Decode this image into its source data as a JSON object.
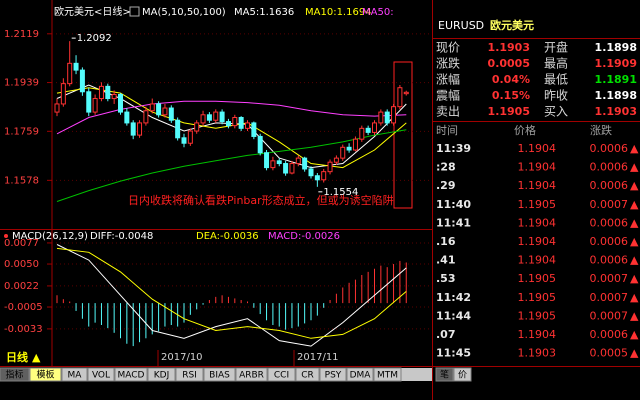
{
  "header": {
    "symbol": "EURUSD",
    "name": "欧元美元"
  },
  "quote": [
    {
      "label": "现价",
      "value": "1.1903",
      "color": "#ff3232"
    },
    {
      "label": "开盘",
      "value": "1.1898",
      "color": "#ffffff"
    },
    {
      "label": "涨跌",
      "value": "0.0005",
      "color": "#ff3232"
    },
    {
      "label": "最高",
      "value": "1.1909",
      "color": "#ff3232"
    },
    {
      "label": "涨幅",
      "value": "0.04%",
      "color": "#ff3232"
    },
    {
      "label": "最低",
      "value": "1.1891",
      "color": "#00e000"
    },
    {
      "label": "震幅",
      "value": "0.15%",
      "color": "#ff3232"
    },
    {
      "label": "昨收",
      "value": "1.1898",
      "color": "#ffffff"
    },
    {
      "label": "卖出",
      "value": "1.1905",
      "color": "#ff3232"
    },
    {
      "label": "买入",
      "value": "1.1903",
      "color": "#ff3232"
    }
  ],
  "trades": {
    "columns": [
      "时间",
      "价格",
      "涨跌"
    ],
    "rows": [
      [
        "11:39",
        "1.1904",
        "0.0006"
      ],
      [
        ":28",
        "1.1904",
        "0.0006"
      ],
      [
        ".29",
        "1.1904",
        "0.0006"
      ],
      [
        "11:40",
        "1.1905",
        "0.0007"
      ],
      [
        "11:41",
        "1.1904",
        "0.0006"
      ],
      [
        ".16",
        "1.1904",
        "0.0006"
      ],
      [
        ".41",
        "1.1904",
        "0.0006"
      ],
      [
        ".53",
        "1.1905",
        "0.0007"
      ],
      [
        "11:42",
        "1.1905",
        "0.0007"
      ],
      [
        "11:44",
        "1.1905",
        "0.0007"
      ],
      [
        ".07",
        "1.1904",
        "0.0006"
      ],
      [
        "11:45",
        "1.1903",
        "0.0005"
      ]
    ]
  },
  "chart_data": [
    {
      "type": "candlestick",
      "title": "欧元美元<日线>",
      "indicator": "MA(5,10,50,100)",
      "up_color": "#ff3232",
      "down_color": "#54fcfc",
      "candles": [
        [
          1.183,
          1.188,
          1.1815,
          1.186
        ],
        [
          1.186,
          1.1955,
          1.185,
          1.1935
        ],
        [
          1.1935,
          1.2092,
          1.1925,
          1.201
        ],
        [
          1.201,
          1.204,
          1.197,
          1.1985
        ],
        [
          1.1985,
          1.1995,
          1.189,
          1.1905
        ],
        [
          1.1905,
          1.192,
          1.1815,
          1.183
        ],
        [
          1.183,
          1.1895,
          1.182,
          1.188
        ],
        [
          1.188,
          1.194,
          1.187,
          1.1925
        ],
        [
          1.1925,
          1.1935,
          1.187,
          1.188
        ],
        [
          1.188,
          1.191,
          1.186,
          1.1895
        ],
        [
          1.1895,
          1.19,
          1.182,
          1.183
        ],
        [
          1.183,
          1.1845,
          1.178,
          1.179
        ],
        [
          1.179,
          1.18,
          1.173,
          1.1745
        ],
        [
          1.1745,
          1.18,
          1.1735,
          1.179
        ],
        [
          1.179,
          1.185,
          1.178,
          1.1835
        ],
        [
          1.1835,
          1.188,
          1.1825,
          1.186
        ],
        [
          1.186,
          1.187,
          1.181,
          1.182
        ],
        [
          1.182,
          1.186,
          1.181,
          1.1845
        ],
        [
          1.1845,
          1.1855,
          1.179,
          1.18
        ],
        [
          1.18,
          1.181,
          1.1725,
          1.1735
        ],
        [
          1.1735,
          1.175,
          1.17,
          1.1715
        ],
        [
          1.1715,
          1.177,
          1.1705,
          1.176
        ],
        [
          1.176,
          1.18,
          1.175,
          1.179
        ],
        [
          1.179,
          1.1835,
          1.178,
          1.182
        ],
        [
          1.182,
          1.183,
          1.179,
          1.18
        ],
        [
          1.18,
          1.184,
          1.179,
          1.183
        ],
        [
          1.183,
          1.184,
          1.1785,
          1.1795
        ],
        [
          1.1795,
          1.1805,
          1.177,
          1.178
        ],
        [
          1.178,
          1.182,
          1.177,
          1.181
        ],
        [
          1.181,
          1.1815,
          1.176,
          1.177
        ],
        [
          1.177,
          1.18,
          1.176,
          1.179
        ],
        [
          1.179,
          1.1795,
          1.173,
          1.174
        ],
        [
          1.174,
          1.175,
          1.167,
          1.168
        ],
        [
          1.168,
          1.169,
          1.1615,
          1.1625
        ],
        [
          1.1625,
          1.1665,
          1.1615,
          1.165
        ],
        [
          1.165,
          1.166,
          1.163,
          1.164
        ],
        [
          1.164,
          1.165,
          1.1595,
          1.1605
        ],
        [
          1.1605,
          1.165,
          1.16,
          1.164
        ],
        [
          1.164,
          1.167,
          1.163,
          1.166
        ],
        [
          1.166,
          1.1665,
          1.161,
          1.162
        ],
        [
          1.162,
          1.163,
          1.1585,
          1.1595
        ],
        [
          1.1595,
          1.1605,
          1.1554,
          1.158
        ],
        [
          1.158,
          1.162,
          1.157,
          1.161
        ],
        [
          1.161,
          1.1655,
          1.16,
          1.1645
        ],
        [
          1.1645,
          1.167,
          1.1635,
          1.166
        ],
        [
          1.166,
          1.171,
          1.165,
          1.17
        ],
        [
          1.17,
          1.1715,
          1.168,
          1.169
        ],
        [
          1.169,
          1.174,
          1.1685,
          1.173
        ],
        [
          1.173,
          1.178,
          1.172,
          1.177
        ],
        [
          1.177,
          1.178,
          1.1745,
          1.1755
        ],
        [
          1.1755,
          1.18,
          1.1745,
          1.179
        ],
        [
          1.179,
          1.184,
          1.178,
          1.183
        ],
        [
          1.183,
          1.184,
          1.178,
          1.179
        ],
        [
          1.179,
          1.186,
          1.178,
          1.185
        ],
        [
          1.185,
          1.193,
          1.184,
          1.192
        ],
        [
          1.1898,
          1.1909,
          1.1891,
          1.1903
        ]
      ],
      "series": [
        {
          "name": "MA5:1.1636",
          "color": "#ffffff",
          "x": [
            0,
            5,
            10,
            15,
            20,
            25,
            30,
            35,
            40,
            45,
            50,
            55
          ],
          "values": [
            1.188,
            1.193,
            1.188,
            1.181,
            1.176,
            1.179,
            1.1785,
            1.166,
            1.1625,
            1.164,
            1.174,
            1.186
          ]
        },
        {
          "name": "MA10:1.1694",
          "color": "#ffff00",
          "x": [
            0,
            5,
            10,
            15,
            20,
            25,
            30,
            35,
            40,
            45,
            50,
            55
          ],
          "values": [
            1.19,
            1.192,
            1.19,
            1.183,
            1.179,
            1.177,
            1.179,
            1.172,
            1.164,
            1.1625,
            1.169,
            1.179
          ]
        },
        {
          "name": "MA50:",
          "color": "#ff40ff",
          "x": [
            0,
            5,
            10,
            15,
            20,
            25,
            30,
            35,
            40,
            45,
            50,
            55
          ],
          "values": [
            1.175,
            1.181,
            1.184,
            1.186,
            1.187,
            1.187,
            1.1865,
            1.1855,
            1.1835,
            1.182,
            1.1815,
            1.182
          ]
        },
        {
          "color": "#00c000",
          "x": [
            0,
            5,
            10,
            15,
            20,
            25,
            30,
            35,
            40,
            45,
            50,
            55
          ],
          "values": [
            1.15,
            1.154,
            1.1575,
            1.1605,
            1.163,
            1.165,
            1.167,
            1.1685,
            1.17,
            1.172,
            1.1745,
            1.1765
          ]
        }
      ],
      "ylim": [
        1.1402,
        1.217
      ],
      "yticks": [
        1.2119,
        1.1939,
        1.1759,
        1.1578
      ],
      "grid": true,
      "annotation": "日内收跌将确认看跌Pinbar形态成立，但或为诱空陷阱",
      "x_labels": [
        "2017/10",
        "2017/11"
      ]
    },
    {
      "type": "macd",
      "title": "MACD(26,12,9)",
      "series": [
        {
          "name": "DIFF:-0.0048",
          "color": "#ffffff",
          "x": [
            0,
            5,
            10,
            15,
            20,
            25,
            30,
            35,
            40,
            45,
            50,
            55
          ],
          "values": [
            0.0075,
            0.0055,
            0.001,
            -0.0035,
            -0.0045,
            -0.003,
            -0.002,
            -0.0048,
            -0.0055,
            -0.0025,
            0.001,
            0.0045
          ]
        },
        {
          "name": "DEA:-0.0036",
          "color": "#ffff00",
          "x": [
            0,
            5,
            10,
            15,
            20,
            25,
            30,
            35,
            40,
            45,
            50,
            55
          ],
          "values": [
            0.007,
            0.0065,
            0.004,
            0.0005,
            -0.002,
            -0.0035,
            -0.003,
            -0.0035,
            -0.0045,
            -0.004,
            -0.002,
            0.0015
          ]
        }
      ],
      "histogram": {
        "name": "MACD:-0.0026",
        "color": "#ff40ff",
        "up_color": "#ff3232",
        "down_color": "#54fcfc",
        "values": [
          0.001,
          0.0005,
          0.0002,
          -0.001,
          -0.002,
          -0.003,
          -0.0025,
          -0.0028,
          -0.0032,
          -0.0038,
          -0.0045,
          -0.0052,
          -0.0055,
          -0.005,
          -0.0045,
          -0.004,
          -0.0036,
          -0.003,
          -0.0028,
          -0.003,
          -0.0025,
          -0.0015,
          -0.0008,
          -0.0002,
          0.0004,
          0.0008,
          0.001,
          0.0008,
          0.0006,
          0.0004,
          0.0002,
          -0.0006,
          -0.0014,
          -0.0022,
          -0.0028,
          -0.003,
          -0.0034,
          -0.0032,
          -0.003,
          -0.0026,
          -0.0022,
          -0.0016,
          -0.0006,
          0.0004,
          0.0012,
          0.002,
          0.0026,
          0.003,
          0.0036,
          0.004,
          0.0044,
          0.0048,
          0.0046,
          0.005,
          0.0054,
          0.0052
        ]
      },
      "ylim": [
        -0.006,
        0.0091
      ],
      "yticks": [
        0.0077,
        {
          "value": 0.005,
          "label": "0.0050"
        },
        0.0022,
        -0.0005,
        -0.0033
      ],
      "grid": true
    }
  ],
  "toolbar": {
    "period": "日线",
    "tabs": [
      "指标",
      "模板",
      "MA",
      "VOL",
      "MACD",
      "KDJ",
      "RSI",
      "BIAS",
      "ARBR",
      "CCI",
      "CR",
      "PSY",
      "DMA",
      "MTM"
    ],
    "side_tabs": [
      "笔",
      "价"
    ]
  }
}
